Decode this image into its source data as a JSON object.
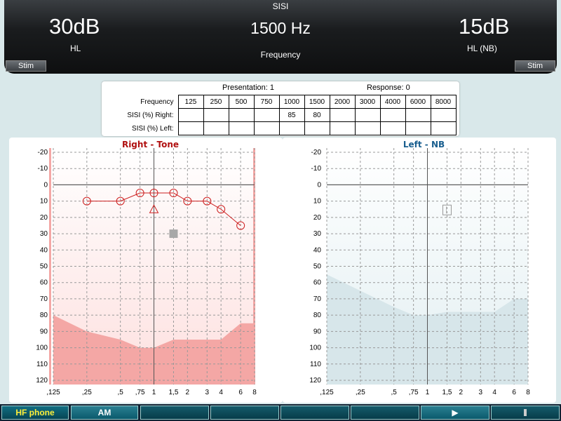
{
  "header": {
    "title": "SISI",
    "left_value": "30dB",
    "left_unit": "HL",
    "center_value": "1500 Hz",
    "center_label": "Frequency",
    "right_value": "15dB",
    "right_unit": "HL (NB)",
    "stim_left": "Stim",
    "stim_right": "Stim"
  },
  "sisi_table": {
    "presentation": "Presentation: 1",
    "response": "Response: 0",
    "row_labels": [
      "Frequency",
      "SISI (%) Right:",
      "SISI (%) Left:"
    ],
    "frequencies": [
      "125",
      "250",
      "500",
      "750",
      "1000",
      "1500",
      "2000",
      "3000",
      "4000",
      "6000",
      "8000"
    ],
    "right": [
      "",
      "",
      "",
      "",
      "85",
      "80",
      "",
      "",
      "",
      "",
      ""
    ],
    "left": [
      "",
      "",
      "",
      "",
      "",
      "",
      "",
      "",
      "",
      "",
      ""
    ]
  },
  "charts": {
    "right": {
      "title": "Right - Tone",
      "title_color": "#b01010",
      "x_ticks": [
        ",125",
        ",25",
        ",5",
        ",75",
        "1",
        "1,5",
        "2",
        "3",
        "4",
        "6",
        "8"
      ],
      "y_ticks": [
        "-20",
        "-10",
        "0",
        "10",
        "20",
        "30",
        "40",
        "50",
        "60",
        "70",
        "80",
        "90",
        "100",
        "110",
        "120"
      ],
      "thresholds": [
        [
          0.25,
          10
        ],
        [
          0.5,
          10
        ],
        [
          0.75,
          5
        ],
        [
          1,
          5
        ],
        [
          1.5,
          5
        ],
        [
          2,
          10
        ],
        [
          3,
          10
        ],
        [
          4,
          15
        ],
        [
          6,
          25
        ]
      ],
      "bone_marker": [
        1,
        15
      ],
      "current_marker": [
        1.5,
        30
      ]
    },
    "left": {
      "title": "Left - NB",
      "title_color": "#1a5f8f",
      "x_ticks": [
        ",125",
        ",25",
        ",5",
        ",75",
        "1",
        "1,5",
        "2",
        "3",
        "4",
        "6",
        "8"
      ],
      "y_ticks": [
        "-20",
        "-10",
        "0",
        "10",
        "20",
        "30",
        "40",
        "50",
        "60",
        "70",
        "80",
        "90",
        "100",
        "110",
        "120"
      ],
      "current_marker": [
        1.5,
        15
      ]
    }
  },
  "function_keys": {
    "hf_phone": "HF phone",
    "am": "AM",
    "play_icon": "play-icon",
    "stop_icon": "stop-icon"
  },
  "colors": {
    "right_area": "#f4a7a5",
    "left_area": "#d7e6ea",
    "threshold": "#cc1f1f"
  }
}
